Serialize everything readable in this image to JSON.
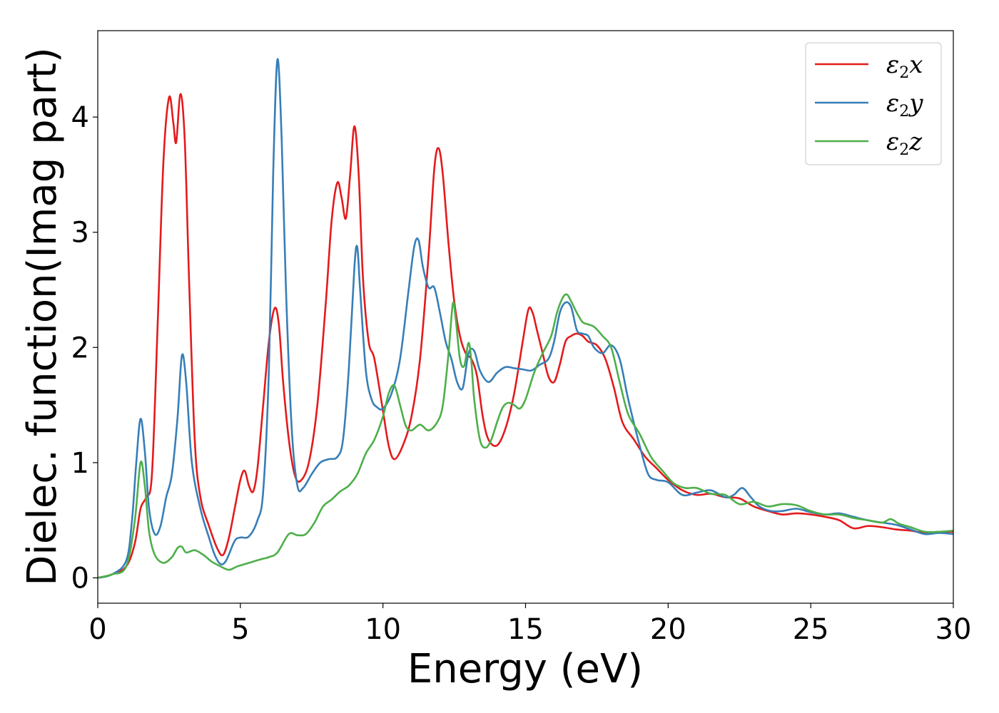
{
  "chart_data": {
    "type": "line",
    "title": "",
    "xlabel": "Energy (eV)",
    "ylabel": "Dielec. function(Imag part)",
    "xlim": [
      0,
      30
    ],
    "ylim": [
      -0.22,
      4.75
    ],
    "xticks": [
      0,
      5,
      10,
      15,
      20,
      25,
      30
    ],
    "xtick_labels": [
      "0",
      "5",
      "10",
      "15",
      "20",
      "25",
      "30"
    ],
    "yticks": [
      0,
      1,
      2,
      3,
      4
    ],
    "ytick_labels": [
      "0",
      "1",
      "2",
      "3",
      "4"
    ],
    "grid": false,
    "legend_position": "top-right",
    "series": [
      {
        "name": "ε2x",
        "legend": {
          "base": "ε",
          "sub": "2",
          "tail": "x"
        },
        "color": "#e41a1c",
        "x": [
          0,
          0.5,
          1.0,
          1.3,
          1.5,
          1.7,
          1.9,
          2.1,
          2.3,
          2.5,
          2.65,
          2.75,
          2.9,
          3.05,
          3.2,
          3.4,
          3.6,
          3.9,
          4.2,
          4.4,
          4.6,
          4.8,
          5.0,
          5.15,
          5.3,
          5.45,
          5.6,
          5.8,
          6.0,
          6.2,
          6.35,
          6.5,
          6.7,
          6.9,
          7.1,
          7.4,
          7.7,
          8.0,
          8.2,
          8.4,
          8.55,
          8.7,
          8.85,
          9.0,
          9.15,
          9.3,
          9.5,
          9.7,
          10.0,
          10.2,
          10.4,
          10.7,
          11.0,
          11.3,
          11.6,
          11.8,
          11.95,
          12.1,
          12.3,
          12.5,
          12.7,
          12.9,
          13.1,
          13.3,
          13.5,
          13.7,
          14.0,
          14.3,
          14.6,
          14.9,
          15.1,
          15.25,
          15.4,
          15.6,
          15.8,
          16.0,
          16.2,
          16.4,
          16.6,
          16.8,
          17.0,
          17.2,
          17.5,
          17.8,
          18.1,
          18.4,
          18.8,
          19.2,
          19.6,
          20.0,
          20.5,
          21.0,
          21.5,
          22.0,
          22.5,
          23.0,
          23.5,
          24.0,
          24.5,
          25.0,
          25.5,
          26.0,
          26.5,
          27.0,
          27.5,
          28.0,
          28.5,
          29.0,
          29.5,
          30.0
        ],
        "y": [
          0.0,
          0.03,
          0.1,
          0.3,
          0.6,
          0.7,
          0.9,
          2.2,
          3.6,
          4.17,
          3.95,
          3.78,
          4.2,
          3.8,
          2.6,
          1.2,
          0.7,
          0.45,
          0.25,
          0.2,
          0.35,
          0.6,
          0.85,
          0.93,
          0.8,
          0.75,
          0.95,
          1.5,
          2.05,
          2.34,
          2.2,
          1.7,
          1.2,
          0.9,
          0.84,
          1.0,
          1.5,
          2.4,
          3.1,
          3.43,
          3.3,
          3.12,
          3.5,
          3.92,
          3.5,
          2.6,
          2.05,
          1.9,
          1.45,
          1.15,
          1.03,
          1.15,
          1.4,
          1.9,
          2.8,
          3.55,
          3.73,
          3.5,
          2.9,
          2.4,
          2.1,
          1.95,
          1.9,
          1.75,
          1.4,
          1.2,
          1.15,
          1.3,
          1.6,
          2.05,
          2.33,
          2.3,
          2.15,
          1.95,
          1.75,
          1.7,
          1.85,
          2.05,
          2.1,
          2.12,
          2.1,
          2.05,
          2.02,
          1.9,
          1.65,
          1.35,
          1.2,
          1.05,
          0.95,
          0.85,
          0.76,
          0.72,
          0.73,
          0.7,
          0.69,
          0.62,
          0.58,
          0.55,
          0.56,
          0.55,
          0.53,
          0.5,
          0.43,
          0.45,
          0.44,
          0.42,
          0.41,
          0.39,
          0.4,
          0.4
        ]
      },
      {
        "name": "ε2y",
        "legend": {
          "base": "ε",
          "sub": "2",
          "tail": "y"
        },
        "color": "#377eb8",
        "x": [
          0,
          0.5,
          1.0,
          1.2,
          1.35,
          1.5,
          1.65,
          1.8,
          2.0,
          2.2,
          2.4,
          2.6,
          2.8,
          2.95,
          3.1,
          3.3,
          3.6,
          3.9,
          4.1,
          4.3,
          4.5,
          4.8,
          5.0,
          5.3,
          5.6,
          5.8,
          6.0,
          6.15,
          6.3,
          6.45,
          6.6,
          6.8,
          7.0,
          7.2,
          7.5,
          7.8,
          8.1,
          8.4,
          8.6,
          8.8,
          9.0,
          9.1,
          9.2,
          9.4,
          9.6,
          9.8,
          10.0,
          10.3,
          10.6,
          10.9,
          11.1,
          11.25,
          11.4,
          11.6,
          11.8,
          12.0,
          12.2,
          12.4,
          12.6,
          12.8,
          13.0,
          13.2,
          13.4,
          13.7,
          14.0,
          14.3,
          14.6,
          14.9,
          15.2,
          15.5,
          15.8,
          16.0,
          16.2,
          16.4,
          16.6,
          16.8,
          17.0,
          17.2,
          17.4,
          17.7,
          18.0,
          18.3,
          18.6,
          19.0,
          19.3,
          19.6,
          20.0,
          20.5,
          21.0,
          21.5,
          22.0,
          22.3,
          22.6,
          22.9,
          23.2,
          23.6,
          24.0,
          24.5,
          25.0,
          25.5,
          26.0,
          26.5,
          27.0,
          27.5,
          28.0,
          28.5,
          29.0,
          29.5,
          30.0
        ],
        "y": [
          0.0,
          0.03,
          0.15,
          0.5,
          1.0,
          1.38,
          1.1,
          0.6,
          0.38,
          0.45,
          0.7,
          0.9,
          1.4,
          1.93,
          1.7,
          1.0,
          0.6,
          0.35,
          0.2,
          0.12,
          0.15,
          0.32,
          0.35,
          0.36,
          0.5,
          0.75,
          1.8,
          3.5,
          4.5,
          3.8,
          2.5,
          1.3,
          0.8,
          0.78,
          0.9,
          1.0,
          1.03,
          1.05,
          1.2,
          1.8,
          2.7,
          2.87,
          2.5,
          1.8,
          1.55,
          1.48,
          1.47,
          1.6,
          1.9,
          2.5,
          2.88,
          2.93,
          2.7,
          2.52,
          2.52,
          2.3,
          2.05,
          1.9,
          1.7,
          1.65,
          1.95,
          1.97,
          1.8,
          1.7,
          1.78,
          1.83,
          1.82,
          1.81,
          1.8,
          1.85,
          1.9,
          2.05,
          2.3,
          2.39,
          2.35,
          2.15,
          2.12,
          2.1,
          2.0,
          1.95,
          2.02,
          1.9,
          1.55,
          1.15,
          0.9,
          0.85,
          0.83,
          0.72,
          0.74,
          0.76,
          0.7,
          0.72,
          0.78,
          0.7,
          0.62,
          0.58,
          0.58,
          0.6,
          0.57,
          0.55,
          0.56,
          0.53,
          0.5,
          0.48,
          0.46,
          0.42,
          0.38,
          0.39,
          0.38
        ]
      },
      {
        "name": "ε2z",
        "legend": {
          "base": "ε",
          "sub": "2",
          "tail": "z"
        },
        "color": "#4daf4a",
        "x": [
          0,
          0.5,
          1.0,
          1.3,
          1.5,
          1.65,
          1.8,
          2.0,
          2.3,
          2.6,
          2.8,
          2.95,
          3.1,
          3.4,
          3.7,
          4.0,
          4.3,
          4.6,
          4.9,
          5.3,
          5.7,
          6.0,
          6.3,
          6.7,
          7.0,
          7.3,
          7.6,
          7.9,
          8.2,
          8.5,
          8.8,
          9.1,
          9.4,
          9.7,
          10.0,
          10.2,
          10.4,
          10.6,
          10.8,
          11.0,
          11.3,
          11.6,
          11.9,
          12.1,
          12.3,
          12.45,
          12.55,
          12.7,
          12.85,
          13.0,
          13.1,
          13.2,
          13.4,
          13.6,
          13.8,
          14.0,
          14.2,
          14.4,
          14.6,
          14.8,
          15.0,
          15.3,
          15.6,
          15.9,
          16.1,
          16.3,
          16.45,
          16.6,
          16.8,
          17.0,
          17.2,
          17.4,
          17.7,
          18.0,
          18.3,
          18.6,
          19.0,
          19.4,
          19.8,
          20.2,
          20.6,
          21.0,
          21.5,
          22.0,
          22.5,
          23.0,
          23.5,
          24.0,
          24.5,
          25.0,
          25.5,
          26.0,
          26.5,
          27.0,
          27.5,
          27.8,
          28.1,
          28.5,
          29.0,
          29.5,
          30.0
        ],
        "y": [
          0.0,
          0.03,
          0.1,
          0.5,
          1.0,
          0.8,
          0.4,
          0.2,
          0.13,
          0.18,
          0.26,
          0.27,
          0.22,
          0.24,
          0.2,
          0.14,
          0.1,
          0.07,
          0.1,
          0.13,
          0.16,
          0.18,
          0.22,
          0.38,
          0.37,
          0.38,
          0.48,
          0.62,
          0.68,
          0.75,
          0.8,
          0.9,
          1.08,
          1.2,
          1.4,
          1.6,
          1.67,
          1.5,
          1.32,
          1.28,
          1.33,
          1.28,
          1.35,
          1.5,
          1.95,
          2.38,
          2.25,
          1.9,
          1.84,
          2.04,
          1.88,
          1.55,
          1.2,
          1.13,
          1.2,
          1.35,
          1.48,
          1.52,
          1.5,
          1.47,
          1.55,
          1.78,
          1.95,
          2.1,
          2.3,
          2.43,
          2.46,
          2.4,
          2.3,
          2.22,
          2.2,
          2.18,
          2.1,
          2.0,
          1.7,
          1.42,
          1.25,
          1.05,
          0.93,
          0.82,
          0.78,
          0.78,
          0.73,
          0.72,
          0.64,
          0.66,
          0.62,
          0.64,
          0.63,
          0.58,
          0.55,
          0.55,
          0.52,
          0.5,
          0.48,
          0.51,
          0.47,
          0.44,
          0.4,
          0.4,
          0.41
        ]
      }
    ]
  }
}
